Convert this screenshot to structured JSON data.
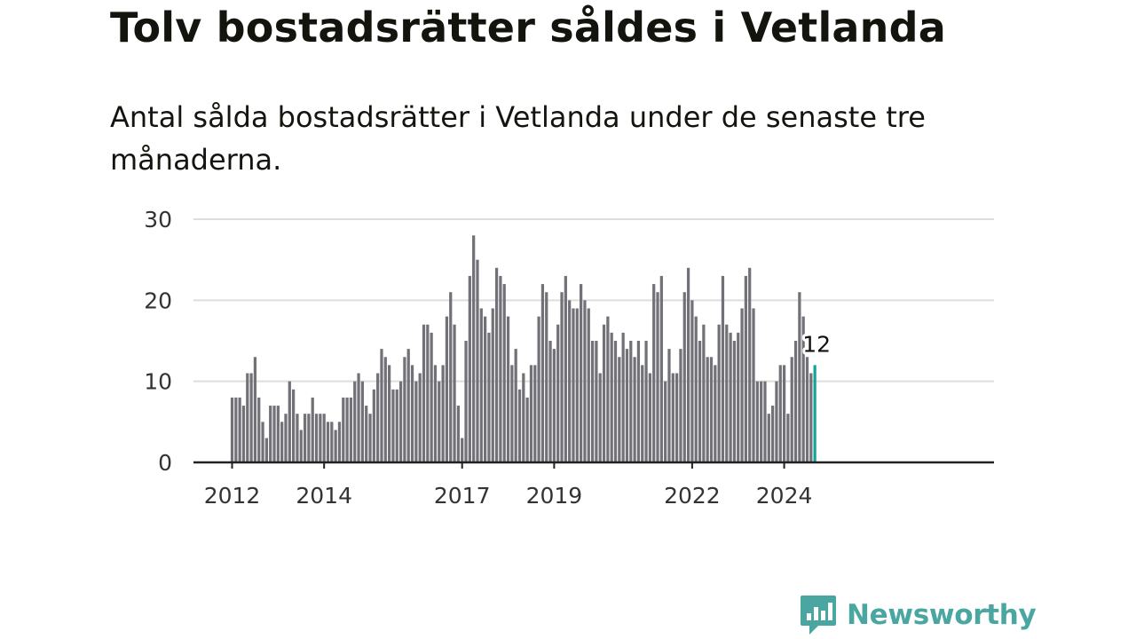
{
  "title": "Tolv bostadsrätter såldes i Vetlanda",
  "subtitle": "Antal sålda bostadsrätter i Vetlanda under de senaste tre månaderna.",
  "brand": "Newsworthy",
  "colors": {
    "bar": "#727178",
    "highlight": "#16a39b",
    "grid": "#dddddd",
    "axis": "#222222",
    "brand": "#4aa6a0"
  },
  "chart_data": {
    "type": "bar",
    "start_month": "2012-01",
    "values": [
      8,
      8,
      8,
      7,
      11,
      11,
      13,
      8,
      5,
      3,
      7,
      7,
      7,
      5,
      6,
      10,
      9,
      6,
      4,
      6,
      6,
      8,
      6,
      6,
      6,
      5,
      5,
      4,
      5,
      8,
      8,
      8,
      10,
      11,
      10,
      7,
      6,
      9,
      11,
      14,
      13,
      12,
      9,
      9,
      10,
      13,
      14,
      12,
      10,
      11,
      17,
      17,
      16,
      12,
      10,
      12,
      18,
      21,
      17,
      7,
      3,
      15,
      23,
      28,
      25,
      19,
      18,
      16,
      19,
      24,
      23,
      22,
      18,
      12,
      14,
      9,
      11,
      8,
      12,
      12,
      18,
      22,
      21,
      15,
      14,
      17,
      21,
      23,
      20,
      19,
      19,
      22,
      20,
      19,
      15,
      15,
      11,
      17,
      18,
      16,
      15,
      13,
      16,
      14,
      15,
      13,
      15,
      12,
      15,
      11,
      22,
      21,
      23,
      10,
      14,
      11,
      11,
      14,
      21,
      24,
      20,
      18,
      15,
      17,
      13,
      13,
      12,
      17,
      23,
      17,
      16,
      15,
      16,
      19,
      23,
      24,
      19,
      10,
      10,
      10,
      6,
      7,
      10,
      12,
      12,
      6,
      13,
      15,
      21,
      18,
      13,
      11,
      12
    ],
    "highlight_label": "12",
    "ylim": [
      0,
      30
    ],
    "yticks": [
      0,
      10,
      20,
      30
    ],
    "xticks": [
      "2012",
      "2014",
      "2017",
      "2019",
      "2022",
      "2024"
    ],
    "grid": true
  }
}
